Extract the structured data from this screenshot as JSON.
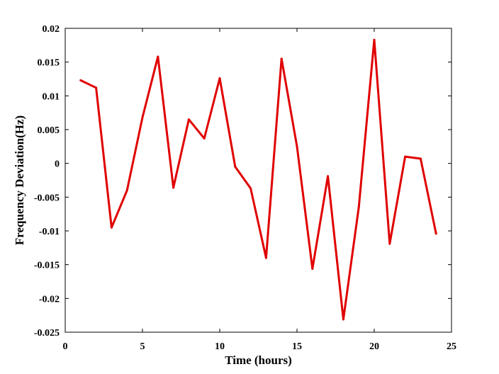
{
  "chart_data": {
    "type": "line",
    "title": "",
    "xlabel": "Time (hours)",
    "ylabel": "Frequency Deviation(Hz)",
    "xlim": [
      0,
      25
    ],
    "ylim": [
      -0.025,
      0.02
    ],
    "xticks": [
      0,
      5,
      10,
      15,
      20,
      25
    ],
    "xtick_labels": [
      "0",
      "5",
      "10",
      "15",
      "20",
      "25"
    ],
    "yticks": [
      -0.025,
      -0.02,
      -0.015,
      -0.01,
      -0.005,
      0,
      0.005,
      0.01,
      0.015,
      0.02
    ],
    "ytick_labels": [
      "-0.025",
      "-0.02",
      "-0.015",
      "-0.01",
      "-0.005",
      "0",
      "0.005",
      "0.01",
      "0.015",
      "0.02"
    ],
    "grid": false,
    "series": [
      {
        "color": "#e00000",
        "x": [
          1,
          2,
          3,
          4,
          5,
          6,
          7,
          8,
          9,
          10,
          11,
          12,
          13,
          14,
          15,
          16,
          17,
          18,
          19,
          20,
          21,
          22,
          23,
          24
        ],
        "y": [
          0.0123,
          0.0112,
          -0.0095,
          -0.004,
          0.0068,
          0.0158,
          -0.0036,
          0.0065,
          0.0037,
          0.0126,
          -0.0005,
          -0.0037,
          -0.014,
          0.0155,
          0.0025,
          -0.0156,
          -0.0019,
          -0.0231,
          -0.0065,
          0.0183,
          -0.0119,
          0.001,
          0.0007,
          -0.0104
        ]
      }
    ]
  }
}
